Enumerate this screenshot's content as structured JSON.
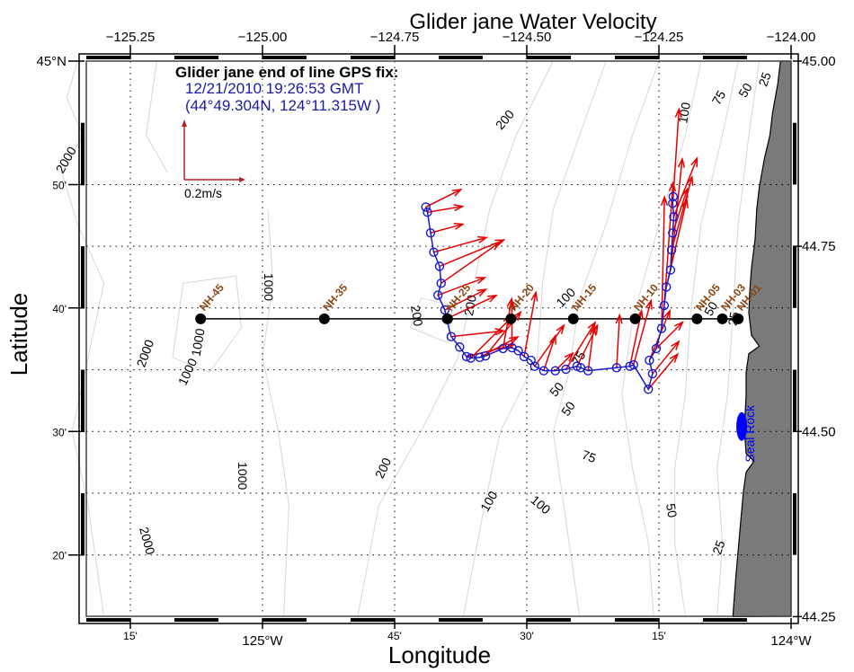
{
  "chart_data": {
    "type": "map",
    "title": "Glider jane Water Velocity",
    "xlabel": "Longitude",
    "ylabel": "Latitude",
    "xlim": [
      -125.4,
      -124.0
    ],
    "ylim": [
      44.25,
      45.0
    ],
    "top_ticks": [
      {
        "lon": -125.25,
        "label": "−125.25"
      },
      {
        "lon": -125.0,
        "label": "−125.00"
      },
      {
        "lon": -124.75,
        "label": "−124.75"
      },
      {
        "lon": -124.5,
        "label": "−124.50"
      },
      {
        "lon": -124.25,
        "label": "−124.25"
      },
      {
        "lon": -124.0,
        "label": "−124.00"
      }
    ],
    "bottom_ticks": [
      {
        "lon": -125.25,
        "label": "15'",
        "major": false
      },
      {
        "lon": -125.0,
        "label": "125°W",
        "major": true
      },
      {
        "lon": -124.75,
        "label": "45'",
        "major": false
      },
      {
        "lon": -124.5,
        "label": "30'",
        "major": false
      },
      {
        "lon": -124.25,
        "label": "15'",
        "major": false
      },
      {
        "lon": -124.0,
        "label": "124°W",
        "major": true
      }
    ],
    "left_ticks": [
      {
        "lat": 45.0,
        "label": "45°N",
        "major": true
      },
      {
        "lat": 44.8333,
        "label": "50'",
        "major": false
      },
      {
        "lat": 44.6667,
        "label": "40'",
        "major": false
      },
      {
        "lat": 44.5,
        "label": "30'",
        "major": false
      },
      {
        "lat": 44.3333,
        "label": "20'",
        "major": false
      }
    ],
    "right_ticks": [
      {
        "lat": 45.0,
        "label": "45.00"
      },
      {
        "lat": 44.75,
        "label": "44.75"
      },
      {
        "lat": 44.5,
        "label": "44.50"
      },
      {
        "lat": 44.25,
        "label": "44.25"
      }
    ],
    "grid": true,
    "info": {
      "heading": "Glider jane end of line GPS fix:",
      "line1": "12/21/2010 19:26:53 GMT",
      "line2": "(44°49.304N, 124°11.315W )"
    },
    "scale": {
      "label": "0.2m/s",
      "speed_ms": 0.2
    },
    "stations": [
      {
        "name": "NH-45",
        "lon": -125.117,
        "lat": 44.652
      },
      {
        "name": "NH-35",
        "lon": -124.883,
        "lat": 44.652
      },
      {
        "name": "NH-25",
        "lon": -124.65,
        "lat": 44.652
      },
      {
        "name": "NH-20",
        "lon": -124.53,
        "lat": 44.652
      },
      {
        "name": "NH-15",
        "lon": -124.412,
        "lat": 44.652
      },
      {
        "name": "NH-10",
        "lon": -124.295,
        "lat": 44.652
      },
      {
        "name": "NH-05",
        "lon": -124.178,
        "lat": 44.652
      },
      {
        "name": "NH-03",
        "lon": -124.13,
        "lat": 44.652
      },
      {
        "name": "NH-01",
        "lon": -124.1,
        "lat": 44.652
      }
    ],
    "landmark": {
      "name": "Seal Rock",
      "lon": -124.09,
      "lat": 44.497
    },
    "track": [
      [
        -124.691,
        44.803
      ],
      [
        -124.688,
        44.796
      ],
      [
        -124.682,
        44.768
      ],
      [
        -124.676,
        44.742
      ],
      [
        -124.665,
        44.723
      ],
      [
        -124.662,
        44.7
      ],
      [
        -124.668,
        44.684
      ],
      [
        -124.655,
        44.664
      ],
      [
        -124.652,
        44.652
      ],
      [
        -124.643,
        44.628
      ],
      [
        -124.627,
        44.614
      ],
      [
        -124.614,
        44.601
      ],
      [
        -124.606,
        44.599
      ],
      [
        -124.589,
        44.6
      ],
      [
        -124.578,
        44.602
      ],
      [
        -124.545,
        44.612
      ],
      [
        -124.528,
        44.613
      ],
      [
        -124.516,
        44.609
      ],
      [
        -124.505,
        44.601
      ],
      [
        -124.492,
        44.596
      ],
      [
        -124.485,
        44.588
      ],
      [
        -124.468,
        44.582
      ],
      [
        -124.446,
        44.582
      ],
      [
        -124.426,
        44.584
      ],
      [
        -124.405,
        44.588
      ],
      [
        -124.398,
        44.586
      ],
      [
        -124.384,
        44.582
      ],
      [
        -124.33,
        44.586
      ],
      [
        -124.305,
        44.588
      ],
      [
        -124.298,
        44.59
      ],
      [
        -124.27,
        44.557
      ],
      [
        -124.262,
        44.578
      ],
      [
        -124.268,
        44.596
      ],
      [
        -124.255,
        44.612
      ],
      [
        -124.245,
        44.639
      ],
      [
        -124.24,
        44.67
      ],
      [
        -124.236,
        44.695
      ],
      [
        -124.228,
        44.718
      ],
      [
        -124.226,
        44.745
      ],
      [
        -124.224,
        44.768
      ],
      [
        -124.222,
        44.79
      ],
      [
        -124.224,
        44.808
      ],
      [
        -124.223,
        44.817
      ]
    ],
    "vectors": [
      {
        "lon": -124.691,
        "lat": 44.803,
        "u": 0.12,
        "v": 0.06
      },
      {
        "lon": -124.688,
        "lat": 44.796,
        "u": 0.12,
        "v": 0.02
      },
      {
        "lon": -124.682,
        "lat": 44.768,
        "u": 0.11,
        "v": 0.03
      },
      {
        "lon": -124.676,
        "lat": 44.742,
        "u": 0.18,
        "v": 0.05
      },
      {
        "lon": -124.665,
        "lat": 44.723,
        "u": 0.22,
        "v": 0.09
      },
      {
        "lon": -124.662,
        "lat": 44.7,
        "u": 0.2,
        "v": 0.14
      },
      {
        "lon": -124.668,
        "lat": 44.684,
        "u": 0.16,
        "v": 0.06
      },
      {
        "lon": -124.655,
        "lat": 44.664,
        "u": 0.14,
        "v": 0.07
      },
      {
        "lon": -124.652,
        "lat": 44.652,
        "u": 0.17,
        "v": 0.08
      },
      {
        "lon": -124.643,
        "lat": 44.628,
        "u": 0.18,
        "v": 0.02
      },
      {
        "lon": -124.614,
        "lat": 44.601,
        "u": 0.16,
        "v": 0.04
      },
      {
        "lon": -124.606,
        "lat": 44.599,
        "u": 0.14,
        "v": 0.14
      },
      {
        "lon": -124.589,
        "lat": 44.6,
        "u": 0.13,
        "v": 0.07
      },
      {
        "lon": -124.578,
        "lat": 44.602,
        "u": 0.12,
        "v": 0.15
      },
      {
        "lon": -124.545,
        "lat": 44.612,
        "u": 0.03,
        "v": 0.17
      },
      {
        "lon": -124.528,
        "lat": 44.613,
        "u": 0.0,
        "v": 0.16
      },
      {
        "lon": -124.505,
        "lat": 44.601,
        "u": 0.04,
        "v": 0.22
      },
      {
        "lon": -124.485,
        "lat": 44.588,
        "u": 0.1,
        "v": 0.14
      },
      {
        "lon": -124.468,
        "lat": 44.582,
        "u": 0.04,
        "v": 0.12
      },
      {
        "lon": -124.446,
        "lat": 44.582,
        "u": 0.06,
        "v": 0.06
      },
      {
        "lon": -124.426,
        "lat": 44.584,
        "u": 0.1,
        "v": 0.16
      },
      {
        "lon": -124.405,
        "lat": 44.588,
        "u": 0.07,
        "v": 0.14
      },
      {
        "lon": -124.384,
        "lat": 44.582,
        "u": 0.02,
        "v": 0.15
      },
      {
        "lon": -124.33,
        "lat": 44.586,
        "u": 0.01,
        "v": 0.18
      },
      {
        "lon": -124.305,
        "lat": 44.588,
        "u": 0.04,
        "v": 0.19
      },
      {
        "lon": -124.298,
        "lat": 44.59,
        "u": 0.06,
        "v": 0.22
      },
      {
        "lon": -124.27,
        "lat": 44.557,
        "u": 0.1,
        "v": 0.12
      },
      {
        "lon": -124.262,
        "lat": 44.578,
        "u": 0.09,
        "v": 0.11
      },
      {
        "lon": -124.268,
        "lat": 44.596,
        "u": 0.07,
        "v": 0.17
      },
      {
        "lon": -124.255,
        "lat": 44.612,
        "u": 0.09,
        "v": 0.09
      },
      {
        "lon": -124.245,
        "lat": 44.639,
        "u": 0.01,
        "v": 0.45
      },
      {
        "lon": -124.24,
        "lat": 44.67,
        "u": 0.03,
        "v": 0.42
      },
      {
        "lon": -124.236,
        "lat": 44.695,
        "u": 0.07,
        "v": 0.3
      },
      {
        "lon": -124.228,
        "lat": 44.718,
        "u": 0.04,
        "v": 0.38
      },
      {
        "lon": -124.226,
        "lat": 44.745,
        "u": 0.07,
        "v": 0.25
      },
      {
        "lon": -124.224,
        "lat": 44.768,
        "u": 0.05,
        "v": 0.15
      },
      {
        "lon": -124.222,
        "lat": 44.79,
        "u": 0.08,
        "v": 0.2
      },
      {
        "lon": -124.223,
        "lat": 44.817,
        "u": 0.02,
        "v": 0.3
      }
    ],
    "contour_labels": [
      {
        "text": "2000",
        "lon": -125.37,
        "lat": 44.866,
        "angle": -60
      },
      {
        "text": "2000",
        "lon": -125.22,
        "lat": 44.605,
        "angle": -70
      },
      {
        "text": "2000",
        "lon": -125.22,
        "lat": 44.352,
        "angle": 75
      },
      {
        "text": "1000",
        "lon": -124.99,
        "lat": 44.695,
        "angle": 90
      },
      {
        "text": "1000",
        "lon": -125.12,
        "lat": 44.62,
        "angle": -80
      },
      {
        "text": "1000",
        "lon": -125.14,
        "lat": 44.58,
        "angle": -65
      },
      {
        "text": "1000",
        "lon": -125.04,
        "lat": 44.44,
        "angle": 90
      },
      {
        "text": "200",
        "lon": -124.71,
        "lat": 44.656,
        "angle": 80
      },
      {
        "text": "200",
        "lon": -124.605,
        "lat": 44.67,
        "angle": -80
      },
      {
        "text": "200",
        "lon": -124.54,
        "lat": 44.92,
        "angle": -50
      },
      {
        "text": "200",
        "lon": -124.77,
        "lat": 44.45,
        "angle": -65
      },
      {
        "text": "100",
        "lon": -124.425,
        "lat": 44.68,
        "angle": -45
      },
      {
        "text": "100",
        "lon": -124.57,
        "lat": 44.405,
        "angle": -60
      },
      {
        "text": "100",
        "lon": -124.475,
        "lat": 44.4,
        "angle": 40
      },
      {
        "text": "100",
        "lon": -124.2,
        "lat": 44.93,
        "angle": -80
      },
      {
        "text": "75",
        "lon": -124.4,
        "lat": 44.598,
        "angle": -60
      },
      {
        "text": "75",
        "lon": -124.383,
        "lat": 44.465,
        "angle": 20
      },
      {
        "text": "75",
        "lon": -124.135,
        "lat": 44.95,
        "angle": -60
      },
      {
        "text": "50",
        "lon": -124.442,
        "lat": 44.556,
        "angle": -50
      },
      {
        "text": "50",
        "lon": -124.42,
        "lat": 44.53,
        "angle": -55
      },
      {
        "text": "50",
        "lon": -124.228,
        "lat": 44.393,
        "angle": 80
      },
      {
        "text": "50",
        "lon": -124.085,
        "lat": 44.96,
        "angle": -60
      },
      {
        "text": "50",
        "lon": -124.15,
        "lat": 44.665,
        "angle": -60
      },
      {
        "text": "25",
        "lon": -124.048,
        "lat": 44.975,
        "angle": -70
      },
      {
        "text": "25",
        "lon": -124.135,
        "lat": 44.343,
        "angle": -70
      },
      {
        "text": "25",
        "lon": -124.107,
        "lat": 44.652,
        "angle": -80
      }
    ],
    "colors": {
      "track": "#1a1acc",
      "vector": "#e60000",
      "station": "#000000",
      "station_label": "#8b4513",
      "land": "#7a7a7a",
      "contour": "#d8d8d8",
      "info_text": "#1a1aa6",
      "scale_arrow": "#b22222",
      "landmark": "#0000ff"
    }
  }
}
